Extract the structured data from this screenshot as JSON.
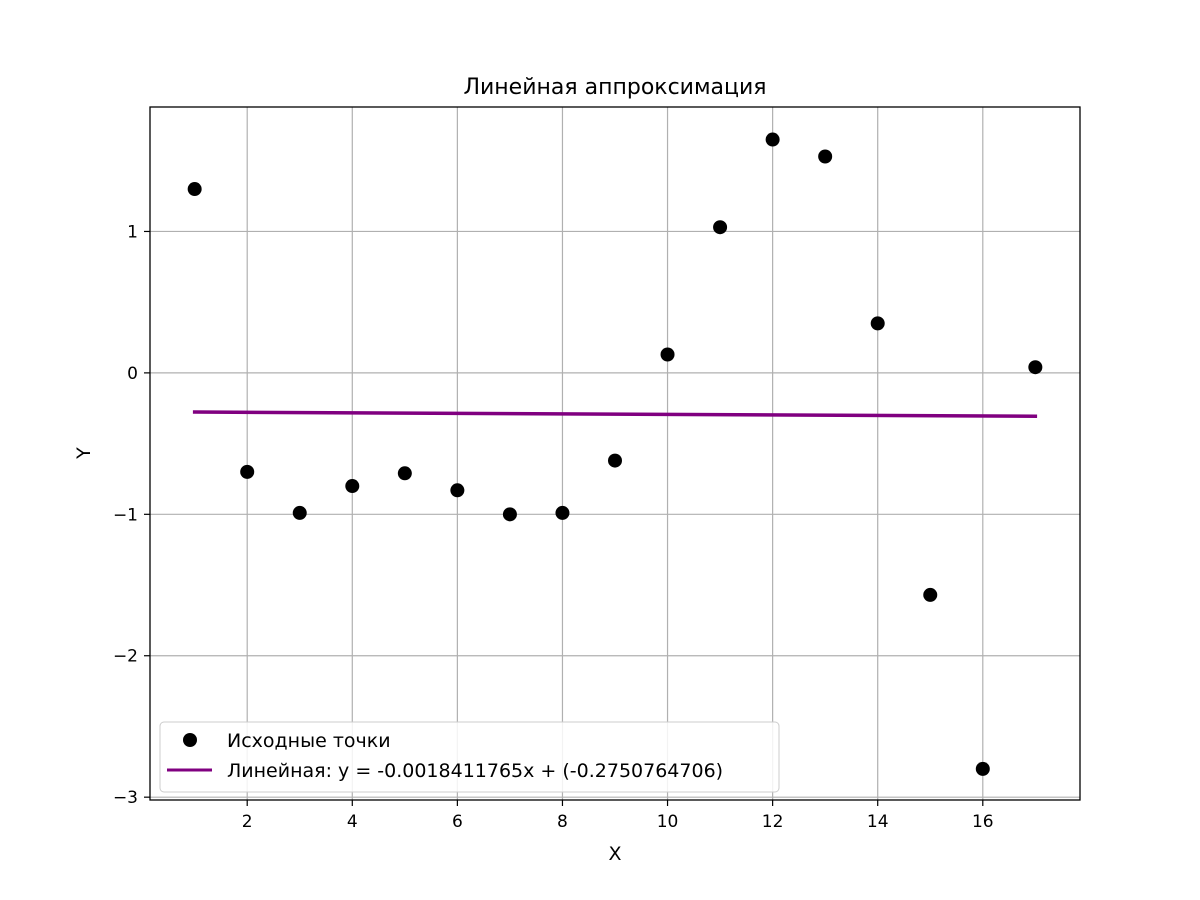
{
  "chart_data": {
    "type": "scatter",
    "title": "Линейная аппроксимация",
    "xlabel": "X",
    "ylabel": "Y",
    "xlim": [
      0.15,
      17.85
    ],
    "ylim": [
      -3.02,
      1.88
    ],
    "grid": true,
    "xticks": [
      2,
      4,
      6,
      8,
      10,
      12,
      14,
      16
    ],
    "yticks": [
      -3,
      -2,
      -1,
      0,
      1
    ],
    "xtick_labels": [
      "2",
      "4",
      "6",
      "8",
      "10",
      "12",
      "14",
      "16"
    ],
    "ytick_labels": [
      "−3",
      "−2",
      "−1",
      "0",
      "1"
    ],
    "legend_position": "lower-left",
    "series": [
      {
        "name": "Исходные точки",
        "kind": "points",
        "color": "#000000",
        "x": [
          1,
          2,
          3,
          4,
          5,
          6,
          7,
          8,
          9,
          10,
          11,
          12,
          13,
          14,
          15,
          16,
          17
        ],
        "y": [
          1.3,
          -0.7,
          -0.99,
          -0.8,
          -0.71,
          -0.83,
          -1.0,
          -0.99,
          -0.62,
          0.13,
          1.03,
          1.65,
          1.53,
          0.35,
          -1.57,
          -2.8,
          0.04
        ]
      },
      {
        "name": "Линейная: y = -0.0018411765x + (-0.2750764706)",
        "kind": "line",
        "color": "#800080",
        "slope": -0.0018411765,
        "intercept": -0.2750764706,
        "x_range": [
          1,
          17
        ]
      }
    ]
  }
}
